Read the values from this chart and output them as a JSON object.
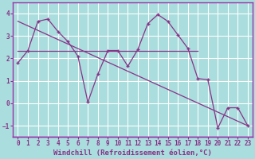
{
  "background_color": "#aadddd",
  "grid_color": "#cceeee",
  "line_color": "#883388",
  "border_color": "#9933aa",
  "hours": [
    0,
    1,
    2,
    3,
    4,
    5,
    6,
    7,
    8,
    9,
    10,
    11,
    12,
    13,
    14,
    15,
    16,
    17,
    18,
    19,
    20,
    21,
    22,
    23
  ],
  "curve_main": [
    1.8,
    2.35,
    3.65,
    3.75,
    3.2,
    2.75,
    2.1,
    0.05,
    1.3,
    2.35,
    2.35,
    1.65,
    2.4,
    3.55,
    3.95,
    3.65,
    3.05,
    2.45,
    1.1,
    1.05,
    -1.1,
    -0.2,
    -0.2,
    -1.0
  ],
  "curve_trend": [
    [
      0,
      3.65
    ],
    [
      23,
      -1.0
    ]
  ],
  "curve_flat": [
    [
      0,
      2.35
    ],
    [
      18,
      2.35
    ]
  ],
  "ylim": [
    -1.5,
    4.5
  ],
  "xlim": [
    -0.5,
    23.5
  ],
  "yticks": [
    -1,
    0,
    1,
    2,
    3,
    4
  ],
  "xticks": [
    0,
    1,
    2,
    3,
    4,
    5,
    6,
    7,
    8,
    9,
    10,
    11,
    12,
    13,
    14,
    15,
    16,
    17,
    18,
    19,
    20,
    21,
    22,
    23
  ],
  "xlabel": "Windchill (Refroidissement éolien,°C)",
  "tick_fontsize": 5.5,
  "xlabel_fontsize": 6.5
}
